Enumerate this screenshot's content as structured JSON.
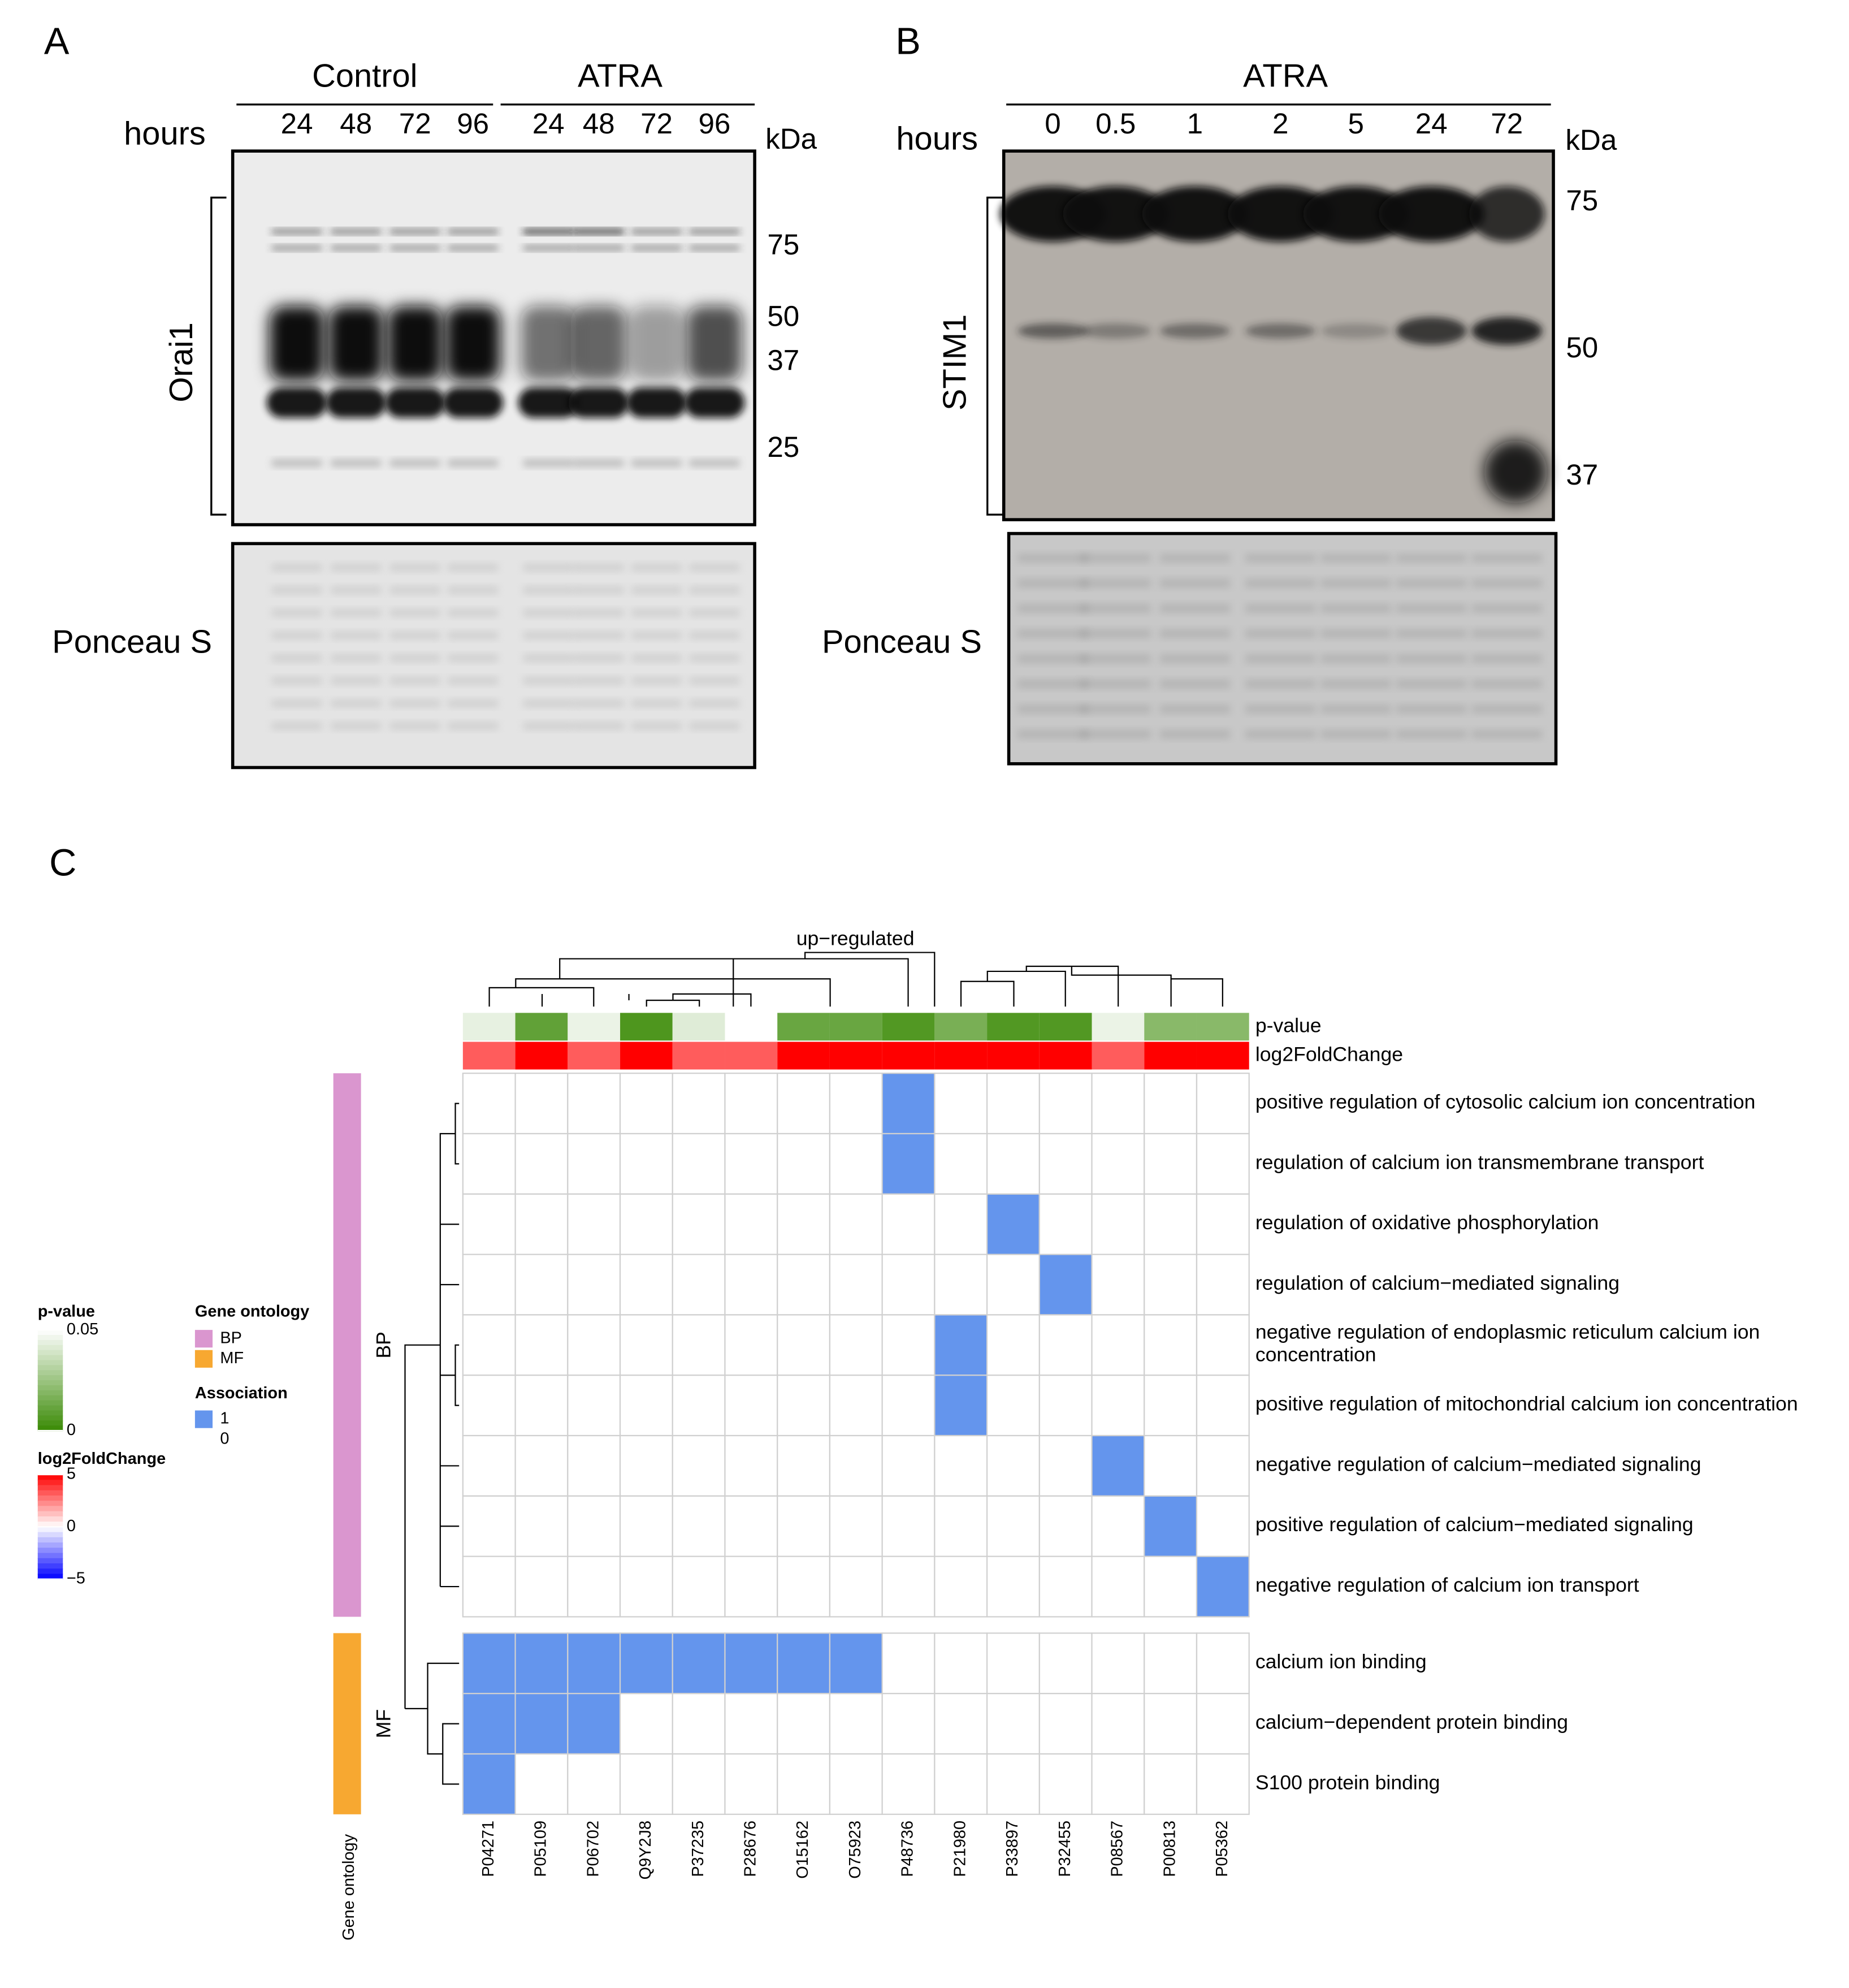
{
  "panel_a": {
    "label": "A",
    "groups": [
      "Control",
      "ATRA"
    ],
    "hours_label": "hours",
    "lanes": [
      24,
      48,
      72,
      96,
      24,
      48,
      72,
      96
    ],
    "unit": "kDa",
    "markers": [
      75,
      50,
      37,
      25
    ],
    "protein": "Orai1",
    "loading": "Ponceau S"
  },
  "panel_b": {
    "label": "B",
    "group": "ATRA",
    "hours_label": "hours",
    "lanes": [
      0,
      0.5,
      1,
      2,
      5,
      24,
      72
    ],
    "unit": "kDa",
    "markers": [
      75,
      50,
      37
    ],
    "protein": "STIM1",
    "loading": "Ponceau S"
  },
  "chart_data": {
    "type": "heatmap",
    "panel_label": "C",
    "title": "up−regulated",
    "columns": [
      "P04271",
      "P05109",
      "P06702",
      "Q9Y2J8",
      "P37235",
      "P28676",
      "O15162",
      "O75923",
      "P48736",
      "P21980",
      "P33897",
      "P32455",
      "P08567",
      "P00813",
      "P05362"
    ],
    "rows": [
      "positive regulation of cytosolic calcium ion concentration",
      "regulation of calcium ion transmembrane transport",
      "regulation of oxidative phosphorylation",
      "regulation of calcium−mediated signaling",
      "negative regulation of endoplasmic reticulum calcium ion concentration",
      "positive regulation of mitochondrial calcium ion concentration",
      "negative regulation of calcium−mediated signaling",
      "positive regulation of calcium−mediated signaling",
      "negative regulation of calcium ion transport",
      "calcium ion binding",
      "calcium−dependent protein binding",
      "S100 protein binding"
    ],
    "row_groups": [
      "BP",
      "BP",
      "BP",
      "BP",
      "BP",
      "BP",
      "BP",
      "BP",
      "BP",
      "MF",
      "MF",
      "MF"
    ],
    "values": [
      [
        0,
        0,
        0,
        0,
        0,
        0,
        0,
        0,
        1,
        0,
        0,
        0,
        0,
        0,
        0
      ],
      [
        0,
        0,
        0,
        0,
        0,
        0,
        0,
        0,
        1,
        0,
        0,
        0,
        0,
        0,
        0
      ],
      [
        0,
        0,
        0,
        0,
        0,
        0,
        0,
        0,
        0,
        0,
        1,
        0,
        0,
        0,
        0
      ],
      [
        0,
        0,
        0,
        0,
        0,
        0,
        0,
        0,
        0,
        0,
        0,
        1,
        0,
        0,
        0
      ],
      [
        0,
        0,
        0,
        0,
        0,
        0,
        0,
        0,
        0,
        1,
        0,
        0,
        0,
        0,
        0
      ],
      [
        0,
        0,
        0,
        0,
        0,
        0,
        0,
        0,
        0,
        1,
        0,
        0,
        0,
        0,
        0
      ],
      [
        0,
        0,
        0,
        0,
        0,
        0,
        0,
        0,
        0,
        0,
        0,
        0,
        1,
        0,
        0
      ],
      [
        0,
        0,
        0,
        0,
        0,
        0,
        0,
        0,
        0,
        0,
        0,
        0,
        0,
        1,
        0
      ],
      [
        0,
        0,
        0,
        0,
        0,
        0,
        0,
        0,
        0,
        0,
        0,
        0,
        0,
        0,
        1
      ],
      [
        1,
        1,
        1,
        1,
        1,
        1,
        1,
        1,
        0,
        0,
        0,
        0,
        0,
        0,
        0
      ],
      [
        1,
        1,
        1,
        0,
        0,
        0,
        0,
        0,
        0,
        0,
        0,
        0,
        0,
        0,
        0
      ],
      [
        1,
        0,
        0,
        0,
        0,
        0,
        0,
        0,
        0,
        0,
        0,
        0,
        0,
        0,
        0
      ]
    ],
    "annotations": [
      {
        "name": "p-value",
        "values": [
          0.044,
          0.01,
          0.045,
          0.005,
          0.042,
          0.05,
          0.012,
          0.012,
          0.006,
          0.016,
          0.006,
          0.006,
          0.045,
          0.02,
          0.02
        ],
        "lim": [
          0,
          0.05
        ],
        "ticks": [
          0.05,
          0
        ],
        "colors": [
          "#3a8a05",
          "#ffffff"
        ]
      },
      {
        "name": "log2FoldChange",
        "values": [
          3.2,
          5,
          3.2,
          5,
          3.2,
          3.2,
          5,
          5,
          5,
          5,
          5,
          5,
          3.2,
          5,
          5
        ],
        "lim": [
          -5,
          5
        ],
        "ticks": [
          5,
          0,
          {
            "value": -5,
            "label": "−5"
          }
        ],
        "colors": [
          "#0000ff",
          "#ffffff",
          "#ff0000"
        ]
      }
    ],
    "group_legend": {
      "title": "Gene ontology",
      "groups": [
        {
          "name": "BP",
          "color": "#da96cf"
        },
        {
          "name": "MF",
          "color": "#f7a831"
        }
      ]
    },
    "association_legend": {
      "title": "Association",
      "levels": [
        1,
        0
      ],
      "colors": [
        "#6495ed",
        "#ffffff"
      ]
    },
    "group_axis_label": "Gene ontology"
  }
}
